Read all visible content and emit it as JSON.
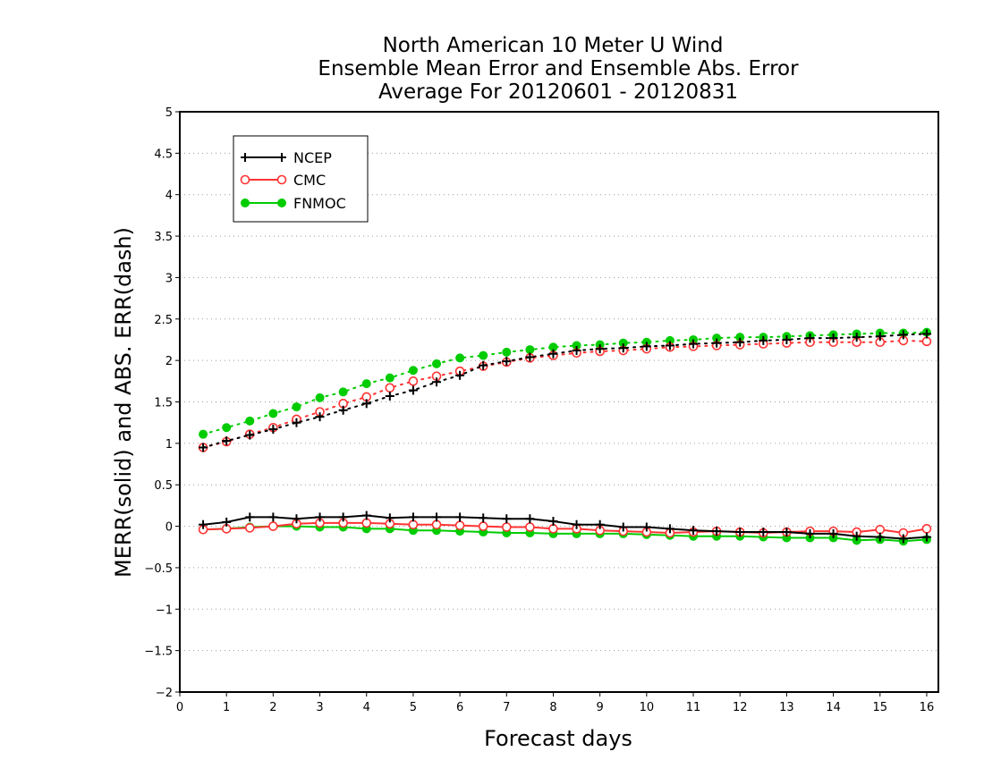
{
  "chart_data": {
    "type": "line",
    "title_lines": [
      "North American 10 Meter U Wind",
      "Ensemble Mean Error and Ensemble Abs. Error",
      "Average For 20120601 - 20120831"
    ],
    "xlabel": "Forecast days",
    "ylabel": "MERR(solid) and ABS. ERR(dash)",
    "xlim": [
      0,
      16.25
    ],
    "ylim": [
      -2,
      5
    ],
    "x_ticks": [
      0,
      1,
      2,
      3,
      4,
      5,
      6,
      7,
      8,
      9,
      10,
      11,
      12,
      13,
      14,
      15,
      16
    ],
    "y_ticks": [
      -2,
      -1.5,
      -1,
      -0.5,
      0,
      0.5,
      1,
      1.5,
      2,
      2.5,
      3,
      3.5,
      4,
      4.5,
      5
    ],
    "grid": "horizontal-dotted",
    "legend_position": "top-left",
    "x": [
      0.5,
      1,
      1.5,
      2,
      2.5,
      3,
      3.5,
      4,
      4.5,
      5,
      5.5,
      6,
      6.5,
      7,
      7.5,
      8,
      8.5,
      9,
      9.5,
      10,
      10.5,
      11,
      11.5,
      12,
      12.5,
      13,
      13.5,
      14,
      14.5,
      15,
      15.5,
      16
    ],
    "series": [
      {
        "name": "NCEP",
        "color": "#000000",
        "marker": "plus",
        "merr": [
          0.02,
          0.05,
          0.11,
          0.11,
          0.09,
          0.11,
          0.11,
          0.13,
          0.1,
          0.11,
          0.11,
          0.11,
          0.1,
          0.09,
          0.09,
          0.06,
          0.02,
          0.02,
          -0.01,
          -0.01,
          -0.03,
          -0.05,
          -0.06,
          -0.07,
          -0.07,
          -0.07,
          -0.09,
          -0.09,
          -0.12,
          -0.13,
          -0.15,
          -0.13
        ],
        "abs_err": [
          0.95,
          1.03,
          1.1,
          1.17,
          1.25,
          1.32,
          1.4,
          1.48,
          1.57,
          1.64,
          1.74,
          1.82,
          1.94,
          1.99,
          2.04,
          2.08,
          2.12,
          2.14,
          2.15,
          2.17,
          2.18,
          2.2,
          2.21,
          2.22,
          2.24,
          2.25,
          2.27,
          2.27,
          2.28,
          2.29,
          2.31,
          2.32
        ]
      },
      {
        "name": "CMC",
        "color": "#ff3333",
        "marker": "open-circle",
        "merr": [
          -0.04,
          -0.03,
          -0.02,
          0.0,
          0.03,
          0.04,
          0.04,
          0.04,
          0.03,
          0.02,
          0.02,
          0.01,
          0.0,
          -0.01,
          -0.01,
          -0.03,
          -0.03,
          -0.05,
          -0.06,
          -0.07,
          -0.08,
          -0.07,
          -0.06,
          -0.07,
          -0.08,
          -0.07,
          -0.06,
          -0.06,
          -0.07,
          -0.04,
          -0.08,
          -0.03
        ],
        "abs_err": [
          0.95,
          1.02,
          1.11,
          1.19,
          1.29,
          1.38,
          1.48,
          1.56,
          1.67,
          1.75,
          1.81,
          1.87,
          1.93,
          1.98,
          2.03,
          2.06,
          2.09,
          2.11,
          2.12,
          2.14,
          2.16,
          2.17,
          2.18,
          2.19,
          2.2,
          2.21,
          2.22,
          2.22,
          2.22,
          2.22,
          2.24,
          2.23
        ]
      },
      {
        "name": "FNMOC",
        "color": "#00cc00",
        "marker": "filled-circle",
        "merr": [
          -0.04,
          -0.03,
          -0.01,
          0.0,
          0.0,
          -0.01,
          -0.01,
          -0.03,
          -0.03,
          -0.05,
          -0.05,
          -0.06,
          -0.07,
          -0.08,
          -0.08,
          -0.09,
          -0.09,
          -0.09,
          -0.09,
          -0.1,
          -0.11,
          -0.12,
          -0.12,
          -0.12,
          -0.13,
          -0.14,
          -0.14,
          -0.14,
          -0.17,
          -0.16,
          -0.18,
          -0.16
        ],
        "abs_err": [
          1.11,
          1.19,
          1.27,
          1.36,
          1.44,
          1.55,
          1.62,
          1.72,
          1.79,
          1.88,
          1.96,
          2.03,
          2.06,
          2.1,
          2.13,
          2.16,
          2.18,
          2.19,
          2.21,
          2.22,
          2.24,
          2.25,
          2.27,
          2.28,
          2.28,
          2.29,
          2.3,
          2.31,
          2.32,
          2.33,
          2.33,
          2.34
        ]
      }
    ]
  }
}
